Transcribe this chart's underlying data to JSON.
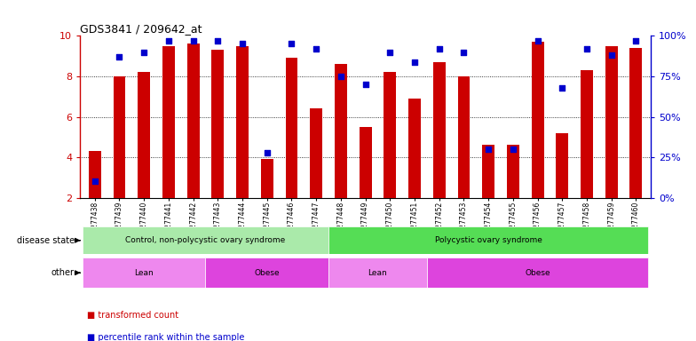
{
  "title": "GDS3841 / 209642_at",
  "samples": [
    "GSM277438",
    "GSM277439",
    "GSM277440",
    "GSM277441",
    "GSM277442",
    "GSM277443",
    "GSM277444",
    "GSM277445",
    "GSM277446",
    "GSM277447",
    "GSM277448",
    "GSM277449",
    "GSM277450",
    "GSM277451",
    "GSM277452",
    "GSM277453",
    "GSM277454",
    "GSM277455",
    "GSM277456",
    "GSM277457",
    "GSM277458",
    "GSM277459",
    "GSM277460"
  ],
  "bar_values": [
    4.3,
    8.0,
    8.2,
    9.5,
    9.6,
    9.3,
    9.5,
    3.9,
    8.9,
    6.4,
    8.6,
    5.5,
    8.2,
    6.9,
    8.7,
    8.0,
    4.6,
    4.6,
    9.7,
    5.2,
    8.3,
    9.5,
    9.4
  ],
  "percentile_values": [
    10,
    87,
    90,
    97,
    97,
    97,
    95,
    28,
    95,
    92,
    75,
    70,
    90,
    84,
    92,
    90,
    30,
    30,
    97,
    68,
    92,
    88,
    97
  ],
  "bar_color": "#cc0000",
  "dot_color": "#0000cc",
  "ylim_left": [
    2,
    10
  ],
  "ylim_right": [
    0,
    100
  ],
  "yticks_left": [
    2,
    4,
    6,
    8,
    10
  ],
  "ytick_labels_left": [
    "2",
    "4",
    "6",
    "8",
    "10"
  ],
  "ytick_labels_right": [
    "0%",
    "25%",
    "50%",
    "75%",
    "100%"
  ],
  "yticks_right": [
    0,
    25,
    50,
    75,
    100
  ],
  "grid_values": [
    4,
    6,
    8
  ],
  "disease_state_groups": [
    {
      "label": "Control, non-polycystic ovary syndrome",
      "start": 0,
      "end": 10,
      "color": "#aaeaaa"
    },
    {
      "label": "Polycystic ovary syndrome",
      "start": 10,
      "end": 23,
      "color": "#55dd55"
    }
  ],
  "other_groups": [
    {
      "label": "Lean",
      "start": 0,
      "end": 5,
      "color": "#ee88ee"
    },
    {
      "label": "Obese",
      "start": 5,
      "end": 10,
      "color": "#dd44dd"
    },
    {
      "label": "Lean",
      "start": 10,
      "end": 14,
      "color": "#ee88ee"
    },
    {
      "label": "Obese",
      "start": 14,
      "end": 23,
      "color": "#dd44dd"
    }
  ],
  "disease_state_label": "disease state",
  "other_label": "other",
  "legend_bar_label": "transformed count",
  "legend_dot_label": "percentile rank within the sample",
  "background_color": "#ffffff",
  "plot_bg_color": "#ffffff"
}
